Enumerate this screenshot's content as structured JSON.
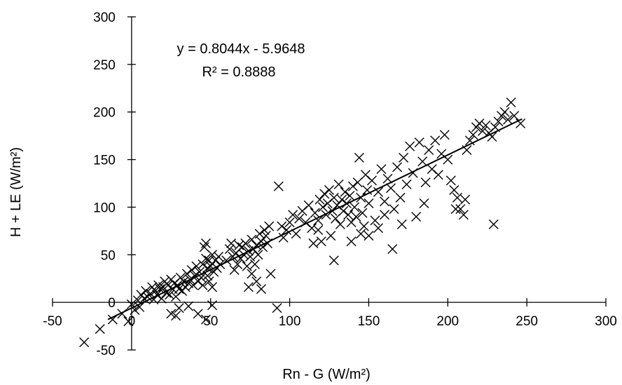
{
  "chart_data": {
    "type": "scatter",
    "xlabel": "Rn - G (W/m²)",
    "ylabel": "H + LE (W/m²)",
    "xlim": [
      -50,
      300
    ],
    "ylim": [
      -50,
      300
    ],
    "xticks": [
      -50,
      0,
      50,
      100,
      150,
      200,
      250,
      300
    ],
    "yticks": [
      -50,
      0,
      50,
      100,
      150,
      200,
      250,
      300
    ],
    "grid": false,
    "marker": "x",
    "trendline": {
      "type": "linear",
      "slope": 0.8044,
      "intercept": -5.9648,
      "x_range": [
        -15,
        247
      ],
      "equation_label": "y = 0.8044x - 5.9648",
      "r2_label": "R² = 0.8888"
    },
    "series": [
      {
        "points": [
          [
            -30,
            -42
          ],
          [
            -20,
            -28
          ],
          [
            -12,
            -18
          ],
          [
            -6,
            -12
          ],
          [
            -2,
            -20
          ],
          [
            0,
            -2
          ],
          [
            2,
            -8
          ],
          [
            4,
            2
          ],
          [
            5,
            -5
          ],
          [
            6,
            8
          ],
          [
            8,
            4
          ],
          [
            9,
            12
          ],
          [
            10,
            6
          ],
          [
            12,
            9
          ],
          [
            13,
            16
          ],
          [
            14,
            3
          ],
          [
            15,
            12
          ],
          [
            16,
            8
          ],
          [
            17,
            18
          ],
          [
            18,
            14
          ],
          [
            19,
            4
          ],
          [
            20,
            16
          ],
          [
            21,
            22
          ],
          [
            22,
            10
          ],
          [
            23,
            18
          ],
          [
            24,
            8
          ],
          [
            25,
            24
          ],
          [
            26,
            14
          ],
          [
            27,
            20
          ],
          [
            28,
            6
          ],
          [
            28,
            -14
          ],
          [
            29,
            18
          ],
          [
            30,
            14
          ],
          [
            31,
            26
          ],
          [
            32,
            12
          ],
          [
            33,
            22
          ],
          [
            34,
            16
          ],
          [
            35,
            30
          ],
          [
            36,
            20
          ],
          [
            36,
            -4
          ],
          [
            37,
            24
          ],
          [
            38,
            34
          ],
          [
            39,
            18
          ],
          [
            40,
            28
          ],
          [
            41,
            38
          ],
          [
            42,
            22
          ],
          [
            42,
            -12
          ],
          [
            43,
            32
          ],
          [
            44,
            26
          ],
          [
            45,
            40
          ],
          [
            45,
            18
          ],
          [
            46,
            58
          ],
          [
            47,
            62
          ],
          [
            47,
            46
          ],
          [
            48,
            36
          ],
          [
            48,
            28
          ],
          [
            49,
            44
          ],
          [
            49,
            22
          ],
          [
            50,
            38
          ],
          [
            51,
            50
          ],
          [
            51,
            16
          ],
          [
            52,
            32
          ],
          [
            53,
            44
          ],
          [
            54,
            36
          ],
          [
            55,
            48
          ],
          [
            56,
            40
          ],
          [
            47,
            -18
          ],
          [
            51,
            -3
          ],
          [
            25,
            -12
          ],
          [
            30,
            -6
          ],
          [
            60,
            44
          ],
          [
            62,
            56
          ],
          [
            63,
            62
          ],
          [
            64,
            48
          ],
          [
            65,
            34
          ],
          [
            66,
            52
          ],
          [
            67,
            40
          ],
          [
            68,
            60
          ],
          [
            69,
            46
          ],
          [
            70,
            58
          ],
          [
            71,
            50
          ],
          [
            72,
            62
          ],
          [
            73,
            38
          ],
          [
            74,
            54
          ],
          [
            75,
            48
          ],
          [
            76,
            66
          ],
          [
            77,
            56
          ],
          [
            78,
            40
          ],
          [
            79,
            60
          ],
          [
            80,
            50
          ],
          [
            81,
            72
          ],
          [
            82,
            64
          ],
          [
            83,
            58
          ],
          [
            84,
            76
          ],
          [
            85,
            70
          ],
          [
            86,
            62
          ],
          [
            87,
            80
          ],
          [
            76,
            30
          ],
          [
            79,
            22
          ],
          [
            82,
            14
          ],
          [
            88,
            30
          ],
          [
            74,
            16
          ],
          [
            92,
            -6
          ],
          [
            93,
            122
          ],
          [
            95,
            80
          ],
          [
            96,
            68
          ],
          [
            98,
            76
          ],
          [
            100,
            84
          ],
          [
            102,
            92
          ],
          [
            104,
            72
          ],
          [
            106,
            88
          ],
          [
            108,
            96
          ],
          [
            110,
            84
          ],
          [
            112,
            102
          ],
          [
            114,
            78
          ],
          [
            116,
            94
          ],
          [
            118,
            86
          ],
          [
            119,
            108
          ],
          [
            120,
            64
          ],
          [
            121,
            100
          ],
          [
            122,
            114
          ],
          [
            123,
            92
          ],
          [
            124,
            104
          ],
          [
            125,
            118
          ],
          [
            126,
            70
          ],
          [
            127,
            96
          ],
          [
            128,
            110
          ],
          [
            129,
            88
          ],
          [
            130,
            102
          ],
          [
            131,
            124
          ],
          [
            132,
            82
          ],
          [
            133,
            108
          ],
          [
            134,
            96
          ],
          [
            135,
            116
          ],
          [
            136,
            104
          ],
          [
            137,
            92
          ],
          [
            138,
            112
          ],
          [
            139,
            84
          ],
          [
            140,
            122
          ],
          [
            141,
            100
          ],
          [
            142,
            90
          ],
          [
            143,
            126
          ],
          [
            144,
            152
          ],
          [
            145,
            110
          ],
          [
            146,
            94
          ],
          [
            147,
            80
          ],
          [
            148,
            134
          ],
          [
            149,
            118
          ],
          [
            150,
            104
          ],
          [
            152,
            128
          ],
          [
            154,
            86
          ],
          [
            156,
            116
          ],
          [
            158,
            140
          ],
          [
            160,
            106
          ],
          [
            162,
            130
          ],
          [
            164,
            120
          ],
          [
            166,
            98
          ],
          [
            168,
            142
          ],
          [
            170,
            110
          ],
          [
            172,
            152
          ],
          [
            174,
            124
          ],
          [
            176,
            164
          ],
          [
            178,
            136
          ],
          [
            180,
            90
          ],
          [
            182,
            168
          ],
          [
            184,
            148
          ],
          [
            186,
            126
          ],
          [
            188,
            160
          ],
          [
            190,
            140
          ],
          [
            192,
            170
          ],
          [
            194,
            134
          ],
          [
            196,
            156
          ],
          [
            198,
            176
          ],
          [
            200,
            150
          ],
          [
            202,
            128
          ],
          [
            204,
            118
          ],
          [
            206,
            110
          ],
          [
            208,
            98
          ],
          [
            210,
            92
          ],
          [
            212,
            160
          ],
          [
            214,
            170
          ],
          [
            216,
            176
          ],
          [
            218,
            184
          ],
          [
            220,
            188
          ],
          [
            222,
            180
          ],
          [
            224,
            186
          ],
          [
            226,
            178
          ],
          [
            228,
            174
          ],
          [
            229,
            82
          ],
          [
            230,
            184
          ],
          [
            232,
            190
          ],
          [
            234,
            196
          ],
          [
            236,
            200
          ],
          [
            238,
            192
          ],
          [
            240,
            210
          ],
          [
            242,
            196
          ],
          [
            246,
            188
          ],
          [
            205,
            98
          ],
          [
            211,
            108
          ],
          [
            115,
            62
          ],
          [
            118,
            76
          ],
          [
            150,
            70
          ],
          [
            160,
            92
          ],
          [
            128,
            44
          ],
          [
            139,
            64
          ],
          [
            145,
            72
          ],
          [
            156,
            78
          ],
          [
            165,
            56
          ],
          [
            171,
            82
          ],
          [
            185,
            104
          ]
        ]
      }
    ]
  }
}
